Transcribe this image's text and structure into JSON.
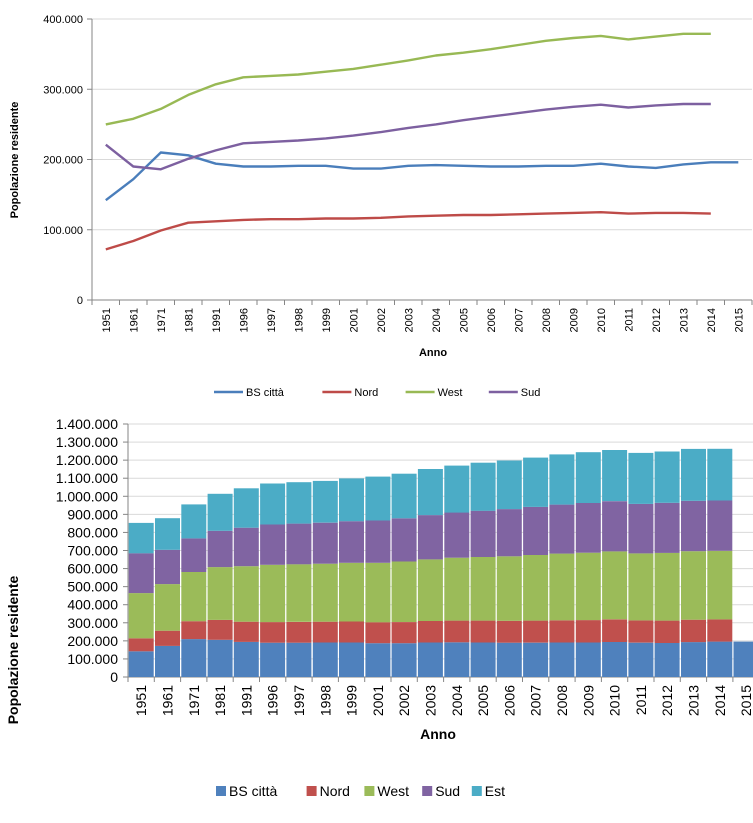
{
  "chart_data": [
    {
      "type": "line",
      "title": "",
      "xlabel": "Anno",
      "ylabel": "Popolazione residente",
      "ylim": [
        0,
        400000
      ],
      "yticks": [
        "0",
        "100.000",
        "200.000",
        "300.000",
        "400.000"
      ],
      "categories": [
        "1951",
        "1961",
        "1971",
        "1981",
        "1991",
        "1996",
        "1997",
        "1998",
        "1999",
        "2001",
        "2002",
        "2003",
        "2004",
        "2005",
        "2006",
        "2007",
        "2008",
        "2009",
        "2010",
        "2011",
        "2012",
        "2013",
        "2014",
        "2015"
      ],
      "legend_position": "bottom",
      "grid": "horizontal",
      "series": [
        {
          "name": "BS città",
          "color": "#4a7ebb",
          "values": [
            142000,
            172000,
            210000,
            206000,
            194000,
            190000,
            190000,
            191000,
            191000,
            187000,
            187000,
            191000,
            192000,
            191000,
            190000,
            190000,
            191000,
            191000,
            194000,
            190000,
            188000,
            193000,
            196000,
            196000
          ]
        },
        {
          "name": "Nord",
          "color": "#be4b48",
          "values": [
            72000,
            84000,
            99000,
            110000,
            112000,
            114000,
            115000,
            115000,
            116000,
            116000,
            117000,
            119000,
            120000,
            121000,
            121000,
            122000,
            123000,
            124000,
            125000,
            123000,
            124000,
            124000,
            123000,
            null
          ]
        },
        {
          "name": "West",
          "color": "#98b954",
          "values": [
            250000,
            258000,
            272000,
            292000,
            307000,
            317000,
            319000,
            321000,
            325000,
            329000,
            335000,
            341000,
            348000,
            352000,
            357000,
            363000,
            369000,
            373000,
            376000,
            371000,
            375000,
            379000,
            379000,
            null
          ]
        },
        {
          "name": "Sud",
          "color": "#7d60a0",
          "values": [
            221000,
            190000,
            186000,
            201000,
            213000,
            223000,
            225000,
            227000,
            230000,
            234000,
            239000,
            245000,
            250000,
            256000,
            261000,
            266000,
            271000,
            275000,
            278000,
            274000,
            277000,
            279000,
            279000,
            null
          ]
        }
      ]
    },
    {
      "type": "bar",
      "stacked": true,
      "title": "",
      "xlabel": "Anno",
      "ylabel": "Popolazione residente",
      "ylim": [
        0,
        1400000
      ],
      "yticks": [
        "0",
        "100.000",
        "200.000",
        "300.000",
        "400.000",
        "500.000",
        "600.000",
        "700.000",
        "800.000",
        "900.000",
        "1.000.000",
        "1.100.000",
        "1.200.000",
        "1.300.000",
        "1.400.000"
      ],
      "categories": [
        "1951",
        "1961",
        "1971",
        "1981",
        "1991",
        "1996",
        "1997",
        "1998",
        "1999",
        "2001",
        "2002",
        "2003",
        "2004",
        "2005",
        "2006",
        "2007",
        "2008",
        "2009",
        "2010",
        "2011",
        "2012",
        "2013",
        "2014",
        "2015"
      ],
      "legend_position": "bottom",
      "grid": "horizontal",
      "series": [
        {
          "name": "BS città",
          "color": "#4f81bd",
          "values": [
            142000,
            172000,
            210000,
            206000,
            194000,
            190000,
            190000,
            191000,
            191000,
            187000,
            187000,
            191000,
            192000,
            191000,
            190000,
            190000,
            191000,
            191000,
            194000,
            190000,
            188000,
            193000,
            196000,
            196000
          ]
        },
        {
          "name": "Nord",
          "color": "#c0504d",
          "values": [
            72000,
            84000,
            99000,
            110000,
            112000,
            114000,
            115000,
            115000,
            116000,
            116000,
            117000,
            119000,
            120000,
            121000,
            121000,
            122000,
            123000,
            124000,
            125000,
            123000,
            124000,
            124000,
            123000,
            0
          ]
        },
        {
          "name": "West",
          "color": "#9bbb59",
          "values": [
            250000,
            258000,
            272000,
            292000,
            307000,
            317000,
            319000,
            321000,
            325000,
            329000,
            335000,
            341000,
            348000,
            352000,
            357000,
            363000,
            369000,
            373000,
            376000,
            371000,
            375000,
            379000,
            379000,
            0
          ]
        },
        {
          "name": "Sud",
          "color": "#8064a2",
          "values": [
            221000,
            190000,
            186000,
            201000,
            213000,
            223000,
            225000,
            227000,
            230000,
            234000,
            239000,
            245000,
            250000,
            256000,
            261000,
            266000,
            271000,
            275000,
            278000,
            274000,
            277000,
            279000,
            279000,
            0
          ]
        },
        {
          "name": "Est",
          "color": "#4bacc6",
          "values": [
            168000,
            175000,
            188000,
            205000,
            218000,
            227000,
            229000,
            231000,
            237000,
            243000,
            247000,
            255000,
            260000,
            266000,
            269000,
            273000,
            278000,
            281000,
            283000,
            282000,
            284000,
            287000,
            286000,
            0
          ]
        }
      ]
    }
  ]
}
